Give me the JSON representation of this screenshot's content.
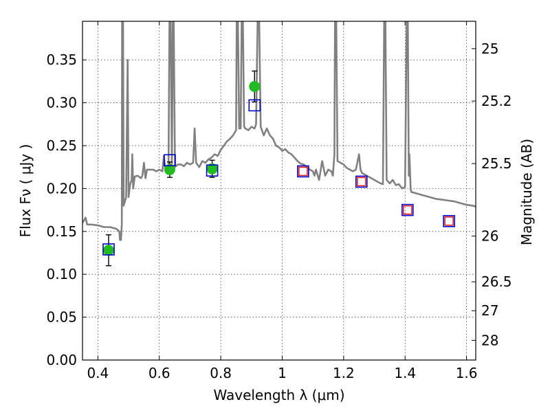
{
  "chart_data": {
    "type": "scatter",
    "xlabel": "Wavelength  λ (μm)",
    "ylabel": "Flux  Fν  ( μJy )",
    "y2label": "Magnitude (AB)",
    "xlim": [
      0.35,
      1.63
    ],
    "ylim": [
      0.0,
      0.395
    ],
    "x_ticks": [
      0.4,
      0.6,
      0.8,
      1.0,
      1.2,
      1.4,
      1.6
    ],
    "x_tick_labels": [
      "0.4",
      "0.6",
      "0.8",
      "1",
      "1.2",
      "1.4",
      "1.6"
    ],
    "y_ticks": [
      0.0,
      0.05,
      0.1,
      0.15,
      0.2,
      0.25,
      0.3,
      0.35
    ],
    "y_tick_labels": [
      "0.00",
      "0.05",
      "0.10",
      "0.15",
      "0.20",
      "0.25",
      "0.30",
      "0.35"
    ],
    "y2_ticks": [
      {
        "label": "25",
        "flux": 0.3631
      },
      {
        "label": "25.2",
        "flux": 0.302
      },
      {
        "label": "25.5",
        "flux": 0.2291
      },
      {
        "label": "26",
        "flux": 0.1445
      },
      {
        "label": "26.5",
        "flux": 0.0912
      },
      {
        "label": "27",
        "flux": 0.0575
      },
      {
        "label": "28",
        "flux": 0.0229
      }
    ],
    "grid": true,
    "series": [
      {
        "kind": "line",
        "color": "#808080",
        "points": [
          [
            0.35,
            0.16
          ],
          [
            0.36,
            0.166
          ],
          [
            0.365,
            0.158
          ],
          [
            0.38,
            0.158
          ],
          [
            0.4,
            0.157
          ],
          [
            0.42,
            0.155
          ],
          [
            0.44,
            0.155
          ],
          [
            0.46,
            0.153
          ],
          [
            0.47,
            0.15
          ],
          [
            0.472,
            0.14
          ],
          [
            0.475,
            0.14
          ],
          [
            0.478,
            0.158
          ],
          [
            0.479,
            0.395
          ],
          [
            0.482,
            0.395
          ],
          [
            0.484,
            0.18
          ],
          [
            0.488,
            0.185
          ],
          [
            0.492,
            0.19
          ],
          [
            0.494,
            0.26
          ],
          [
            0.497,
            0.35
          ],
          [
            0.5,
            0.19
          ],
          [
            0.505,
            0.205
          ],
          [
            0.51,
            0.21
          ],
          [
            0.512,
            0.24
          ],
          [
            0.515,
            0.2
          ],
          [
            0.52,
            0.214
          ],
          [
            0.53,
            0.215
          ],
          [
            0.54,
            0.212
          ],
          [
            0.545,
            0.215
          ],
          [
            0.55,
            0.23
          ],
          [
            0.555,
            0.212
          ],
          [
            0.56,
            0.222
          ],
          [
            0.58,
            0.222
          ],
          [
            0.59,
            0.22
          ],
          [
            0.6,
            0.222
          ],
          [
            0.61,
            0.22
          ],
          [
            0.615,
            0.238
          ],
          [
            0.62,
            0.22
          ],
          [
            0.63,
            0.225
          ],
          [
            0.633,
            0.395
          ],
          [
            0.637,
            0.395
          ],
          [
            0.641,
            0.225
          ],
          [
            0.644,
            0.395
          ],
          [
            0.647,
            0.395
          ],
          [
            0.651,
            0.225
          ],
          [
            0.66,
            0.228
          ],
          [
            0.67,
            0.228
          ],
          [
            0.68,
            0.226
          ],
          [
            0.69,
            0.23
          ],
          [
            0.7,
            0.228
          ],
          [
            0.71,
            0.23
          ],
          [
            0.715,
            0.27
          ],
          [
            0.72,
            0.23
          ],
          [
            0.73,
            0.225
          ],
          [
            0.74,
            0.232
          ],
          [
            0.75,
            0.23
          ],
          [
            0.76,
            0.234
          ],
          [
            0.77,
            0.236
          ],
          [
            0.78,
            0.24
          ],
          [
            0.79,
            0.238
          ],
          [
            0.8,
            0.245
          ],
          [
            0.81,
            0.25
          ],
          [
            0.82,
            0.255
          ],
          [
            0.83,
            0.258
          ],
          [
            0.84,
            0.262
          ],
          [
            0.85,
            0.268
          ],
          [
            0.852,
            0.395
          ],
          [
            0.856,
            0.395
          ],
          [
            0.86,
            0.27
          ],
          [
            0.865,
            0.27
          ],
          [
            0.868,
            0.395
          ],
          [
            0.872,
            0.395
          ],
          [
            0.876,
            0.272
          ],
          [
            0.88,
            0.27
          ],
          [
            0.89,
            0.268
          ],
          [
            0.9,
            0.272
          ],
          [
            0.91,
            0.27
          ],
          [
            0.915,
            0.275
          ],
          [
            0.92,
            0.395
          ],
          [
            0.925,
            0.395
          ],
          [
            0.93,
            0.272
          ],
          [
            0.94,
            0.262
          ],
          [
            0.95,
            0.27
          ],
          [
            0.96,
            0.262
          ],
          [
            0.97,
            0.258
          ],
          [
            0.98,
            0.25
          ],
          [
            0.99,
            0.248
          ],
          [
            1.0,
            0.244
          ],
          [
            1.01,
            0.246
          ],
          [
            1.02,
            0.242
          ],
          [
            1.03,
            0.24
          ],
          [
            1.04,
            0.236
          ],
          [
            1.05,
            0.232
          ],
          [
            1.06,
            0.229
          ],
          [
            1.07,
            0.228
          ],
          [
            1.08,
            0.225
          ],
          [
            1.09,
            0.222
          ],
          [
            1.1,
            0.22
          ],
          [
            1.105,
            0.215
          ],
          [
            1.11,
            0.222
          ],
          [
            1.12,
            0.21
          ],
          [
            1.13,
            0.232
          ],
          [
            1.14,
            0.215
          ],
          [
            1.15,
            0.222
          ],
          [
            1.16,
            0.22
          ],
          [
            1.165,
            0.215
          ],
          [
            1.17,
            0.24
          ],
          [
            1.172,
            0.395
          ],
          [
            1.176,
            0.395
          ],
          [
            1.18,
            0.232
          ],
          [
            1.19,
            0.23
          ],
          [
            1.2,
            0.228
          ],
          [
            1.21,
            0.224
          ],
          [
            1.22,
            0.222
          ],
          [
            1.23,
            0.22
          ],
          [
            1.24,
            0.222
          ],
          [
            1.25,
            0.24
          ],
          [
            1.255,
            0.222
          ],
          [
            1.26,
            0.218
          ],
          [
            1.27,
            0.216
          ],
          [
            1.28,
            0.214
          ],
          [
            1.29,
            0.212
          ],
          [
            1.3,
            0.21
          ],
          [
            1.31,
            0.208
          ],
          [
            1.32,
            0.206
          ],
          [
            1.328,
            0.205
          ],
          [
            1.332,
            0.395
          ],
          [
            1.336,
            0.395
          ],
          [
            1.34,
            0.21
          ],
          [
            1.35,
            0.206
          ],
          [
            1.36,
            0.21
          ],
          [
            1.37,
            0.204
          ],
          [
            1.38,
            0.205
          ],
          [
            1.39,
            0.2
          ],
          [
            1.4,
            0.202
          ],
          [
            1.405,
            0.395
          ],
          [
            1.409,
            0.395
          ],
          [
            1.412,
            0.215
          ],
          [
            1.414,
            0.24
          ],
          [
            1.418,
            0.2
          ],
          [
            1.42,
            0.196
          ],
          [
            1.44,
            0.194
          ],
          [
            1.46,
            0.192
          ],
          [
            1.48,
            0.19
          ],
          [
            1.5,
            0.188
          ],
          [
            1.52,
            0.187
          ],
          [
            1.54,
            0.186
          ],
          [
            1.56,
            0.185
          ],
          [
            1.58,
            0.183
          ],
          [
            1.6,
            0.181
          ],
          [
            1.62,
            0.18
          ],
          [
            1.63,
            0.179
          ]
        ]
      },
      {
        "kind": "points",
        "marker": "circle",
        "color": "#22bb22",
        "points": [
          {
            "x": 0.435,
            "y": 0.128,
            "err": 0.018
          },
          {
            "x": 0.634,
            "y": 0.222,
            "err": 0.009
          },
          {
            "x": 0.772,
            "y": 0.223,
            "err": 0.01
          },
          {
            "x": 0.91,
            "y": 0.319,
            "err": 0.018
          }
        ]
      },
      {
        "kind": "points",
        "marker": "square-open",
        "color": "#0000cc",
        "points": [
          {
            "x": 0.435,
            "y": 0.129
          },
          {
            "x": 0.634,
            "y": 0.233
          },
          {
            "x": 0.772,
            "y": 0.221
          },
          {
            "x": 0.91,
            "y": 0.297
          },
          {
            "x": 1.068,
            "y": 0.22
          },
          {
            "x": 1.258,
            "y": 0.208
          },
          {
            "x": 1.408,
            "y": 0.175
          },
          {
            "x": 1.543,
            "y": 0.162
          }
        ]
      },
      {
        "kind": "points",
        "marker": "square-open",
        "color": "#dd2222",
        "points": [
          {
            "x": 1.068,
            "y": 0.22
          },
          {
            "x": 1.258,
            "y": 0.208
          },
          {
            "x": 1.408,
            "y": 0.175
          },
          {
            "x": 1.543,
            "y": 0.162
          }
        ]
      }
    ]
  }
}
